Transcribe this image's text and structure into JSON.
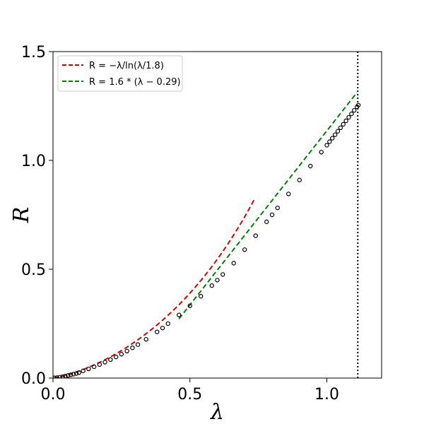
{
  "chart_data": {
    "type": "scatter",
    "title": "",
    "xlabel": "λ",
    "ylabel": "R",
    "xlim": [
      0,
      1.2
    ],
    "ylim": [
      0,
      1.5
    ],
    "x_ticks": [
      {
        "value": 0.0,
        "label": "0.0"
      },
      {
        "value": 0.5,
        "label": "0.5"
      },
      {
        "value": 1.0,
        "label": "1.0"
      }
    ],
    "y_ticks": [
      {
        "value": 0.0,
        "label": "0.0"
      },
      {
        "value": 0.5,
        "label": "0.5"
      },
      {
        "value": 1.0,
        "label": "1.0"
      },
      {
        "value": 1.5,
        "label": "1.5"
      }
    ],
    "grid": false,
    "legend_position": "top-left",
    "colors": {
      "fit1": "#dd0000",
      "fit2": "#008000",
      "points": "#000000",
      "vline": "#000000"
    },
    "series": [
      {
        "type": "scatter",
        "x": [
          0.005,
          0.015,
          0.025,
          0.035,
          0.045,
          0.055,
          0.065,
          0.075,
          0.085,
          0.095,
          0.11,
          0.13,
          0.15,
          0.17,
          0.19,
          0.21,
          0.23,
          0.25,
          0.27,
          0.29,
          0.31,
          0.34,
          0.38,
          0.4,
          0.42,
          0.46,
          0.5,
          0.54,
          0.58,
          0.6,
          0.62,
          0.66,
          0.7,
          0.74,
          0.78,
          0.8,
          0.82,
          0.86,
          0.9,
          0.94,
          0.98,
          1.0,
          1.01,
          1.02,
          1.03,
          1.04,
          1.05,
          1.06,
          1.07,
          1.08,
          1.09,
          1.1,
          1.11,
          1.115
        ],
        "y": [
          0.001,
          0.002,
          0.004,
          0.006,
          0.009,
          0.012,
          0.015,
          0.018,
          0.021,
          0.025,
          0.033,
          0.042,
          0.052,
          0.062,
          0.073,
          0.085,
          0.097,
          0.11,
          0.124,
          0.139,
          0.154,
          0.178,
          0.212,
          0.23,
          0.25,
          0.29,
          0.332,
          0.376,
          0.425,
          0.45,
          0.476,
          0.528,
          0.59,
          0.654,
          0.718,
          0.75,
          0.782,
          0.846,
          0.91,
          0.974,
          1.038,
          1.07,
          1.086,
          1.102,
          1.118,
          1.134,
          1.15,
          1.166,
          1.182,
          1.198,
          1.214,
          1.23,
          1.246,
          1.254
        ]
      }
    ],
    "fits": [
      {
        "name": "$R=-\\lambda/\\ln(\\lambda/1.8)$",
        "legend_text": "R = −λ/ln(λ/1.8)",
        "formula": "-x/ln(x/1.8)",
        "x_range": [
          0.0,
          0.735
        ],
        "style": "dashed",
        "color": "#dd0000"
      },
      {
        "name": "$R=1.6*(\\lambda-0.29)$",
        "legend_text": "R = 1.6 * (λ − 0.29)",
        "formula": "1.6*(x-0.29)",
        "x_range": [
          0.46,
          1.11
        ],
        "style": "dashed",
        "color": "#008000"
      }
    ],
    "vline": {
      "x": 1.113,
      "style": "dotted",
      "color": "#000000"
    }
  }
}
